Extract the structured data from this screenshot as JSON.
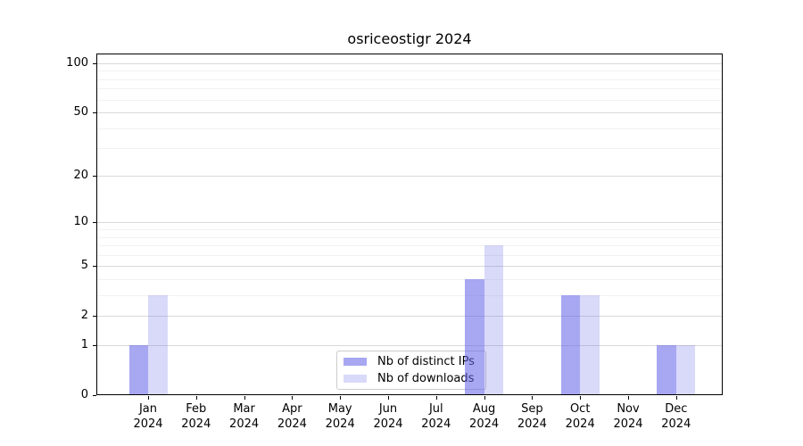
{
  "chart_data": {
    "type": "bar",
    "title": "osriceostigr 2024",
    "months": [
      "Jan",
      "Feb",
      "Mar",
      "Apr",
      "May",
      "Jun",
      "Jul",
      "Aug",
      "Sep",
      "Oct",
      "Nov",
      "Dec"
    ],
    "year": "2024",
    "series": [
      {
        "name": "Nb of distinct IPs",
        "color": "rgba(98,98,232,0.56)",
        "values": [
          1,
          0,
          0,
          0,
          0,
          0,
          0,
          4,
          0,
          3,
          0,
          1
        ]
      },
      {
        "name": "Nb of downloads",
        "color": "rgba(98,98,232,0.245)",
        "values": [
          3,
          0,
          0,
          0,
          0,
          0,
          0,
          7,
          0,
          3,
          0,
          1
        ]
      }
    ],
    "y_axis": {
      "scale": "log10(1+v)",
      "ticks": [
        0,
        1,
        2,
        5,
        10,
        20,
        50,
        100
      ],
      "minor_gridlines": [
        3,
        4,
        6,
        7,
        8,
        9,
        30,
        40,
        60,
        70,
        80,
        90
      ],
      "range_top_value": 115
    },
    "xlabel": "",
    "ylabel": "",
    "legend_position": "bottom-center-inside",
    "grid": "on",
    "colors": {
      "grid_major": "#d9d9d9",
      "grid_minor": "#f1f1f1",
      "spine": "#000000",
      "legend_border": "#cccccc",
      "legend_background": "rgba(255,255,255,0.8)",
      "text": "#000000"
    }
  }
}
